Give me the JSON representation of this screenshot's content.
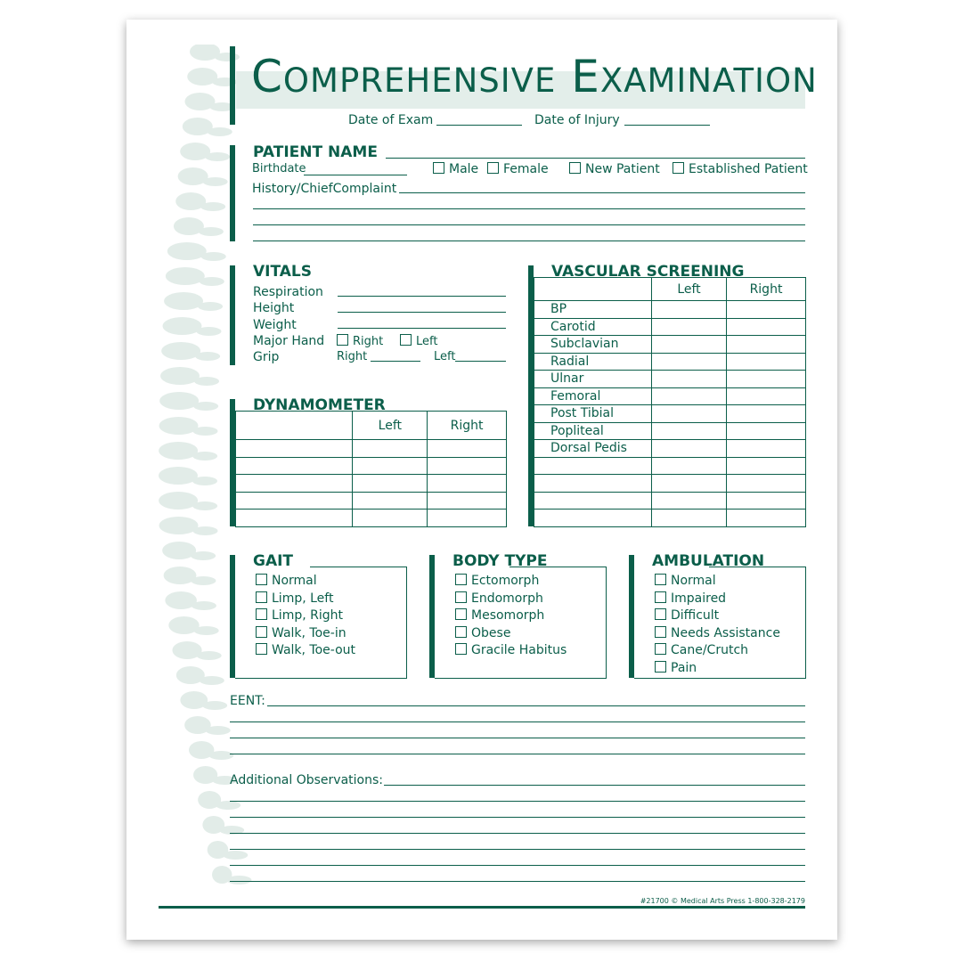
{
  "title": {
    "first_a": "C",
    "rest_a": "OMPREHENSIVE",
    "first_b": "E",
    "rest_b": "XAMINATION"
  },
  "dates": {
    "exam": "Date of Exam",
    "injury": "Date of Injury"
  },
  "patient": {
    "heading": "PATIENT NAME",
    "birthdate": "Birthdate",
    "male": "Male",
    "female": "Female",
    "new": "New Patient",
    "established": "Established Patient",
    "history": "History/ChiefComplaint"
  },
  "vitals": {
    "heading": "VITALS",
    "respiration": "Respiration",
    "height": "Height",
    "weight": "Weight",
    "major_hand": "Major Hand",
    "right": "Right",
    "left": "Left",
    "grip": "Grip",
    "grip_right": "Right",
    "grip_left": "Left"
  },
  "dynamometer": {
    "heading": "DYNAMOMETER",
    "columns": [
      "",
      "Left",
      "Right"
    ]
  },
  "vascular": {
    "heading": "VASCULAR SCREENING",
    "columns": [
      "",
      "Left",
      "Right"
    ],
    "rows": [
      "BP",
      "Carotid",
      "Subclavian",
      "Radial",
      "Ulnar",
      "Femoral",
      "Post Tibial",
      "Popliteal",
      "Dorsal Pedis",
      "",
      "",
      "",
      ""
    ]
  },
  "gait": {
    "heading": "GAIT",
    "items": [
      "Normal",
      "Limp, Left",
      "Limp, Right",
      "Walk, Toe-in",
      "Walk, Toe-out"
    ]
  },
  "body_type": {
    "heading": "BODY TYPE",
    "items": [
      "Ectomorph",
      "Endomorph",
      "Mesomorph",
      "Obese",
      "Gracile Habitus"
    ]
  },
  "ambulation": {
    "heading": "AMBULATION",
    "items": [
      "Normal",
      "Impaired",
      "Difficult",
      "Needs Assistance",
      "Cane/Crutch",
      "Pain"
    ]
  },
  "eent": "EENT:",
  "observations": "Additional Observations:",
  "footer": "#21700 © Medical Arts Press  1-800-328-2179",
  "colors": {
    "ink": "#0b5e4a",
    "watermark": "#dfeae6"
  }
}
